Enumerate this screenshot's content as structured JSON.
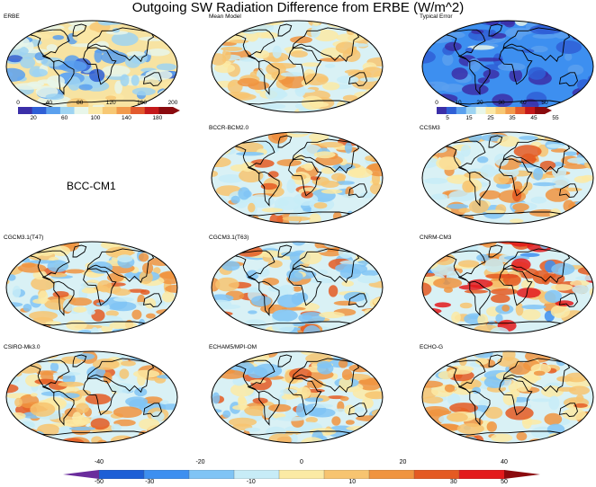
{
  "title": "Outgoing SW Radiation Difference from ERBE (W/m^2)",
  "missing_model_label": "BCC-CM1",
  "panels": [
    {
      "id": "erbe",
      "label": "ERBE",
      "scheme": "abs"
    },
    {
      "id": "mean",
      "label": "Mean Model",
      "scheme": "diff-mild"
    },
    {
      "id": "typ",
      "label": "Typical Error",
      "scheme": "err"
    },
    {
      "id": "bccr",
      "label": "BCCR-BCM2.0",
      "scheme": "diff"
    },
    {
      "id": "ccsm",
      "label": "CCSM3",
      "scheme": "diff"
    },
    {
      "id": "cg47",
      "label": "CGCM3.1(T47)",
      "scheme": "diff"
    },
    {
      "id": "cg63",
      "label": "CGCM3.1(T63)",
      "scheme": "diff"
    },
    {
      "id": "cnrm",
      "label": "CNRM-CM3",
      "scheme": "diff-strong"
    },
    {
      "id": "csiro",
      "label": "CSIRO-Mk3.0",
      "scheme": "diff"
    },
    {
      "id": "echam",
      "label": "ECHAM5/MPI-OM",
      "scheme": "diff"
    },
    {
      "id": "echog",
      "label": "ECHO-G",
      "scheme": "diff"
    }
  ],
  "erbe_colorbar": {
    "top_ticks": [
      "0",
      "40",
      "80",
      "120",
      "160",
      "200"
    ],
    "bottom_ticks": [
      "20",
      "60",
      "100",
      "140",
      "180"
    ],
    "colors": [
      "#3b2fa8",
      "#2f5fd6",
      "#5aa0ee",
      "#9ed4f2",
      "#e8f6ea",
      "#fbe8a6",
      "#f7c874",
      "#f19a4c",
      "#e2592d",
      "#c4191b",
      "#8a0a0e"
    ]
  },
  "error_colorbar": {
    "top_ticks": [
      "0",
      "10",
      "20",
      "30",
      "40",
      "50"
    ],
    "bottom_ticks": [
      "5",
      "15",
      "25",
      "35",
      "45",
      "55"
    ],
    "colors": [
      "#3b2fa8",
      "#2f5fd6",
      "#5aa0ee",
      "#9ed4f2",
      "#e8f6ea",
      "#fbe8a6",
      "#f7c874",
      "#f19a4c",
      "#e2592d",
      "#c4191b",
      "#8a0a0e"
    ]
  },
  "diff_colorbar": {
    "top_ticks": [
      "-40",
      "-20",
      "0",
      "20",
      "40"
    ],
    "bottom_ticks": [
      "-50",
      "-30",
      "-10",
      "10",
      "30",
      "50"
    ],
    "colors": [
      "#1d5fd6",
      "#3d8ff0",
      "#80c4f5",
      "#c7ecf7",
      "#fbeaa4",
      "#f7c470",
      "#f0943f",
      "#e45a22",
      "#e31a1c"
    ],
    "low_end": "#6a2c9c",
    "high_end": "#8b0a0e"
  }
}
